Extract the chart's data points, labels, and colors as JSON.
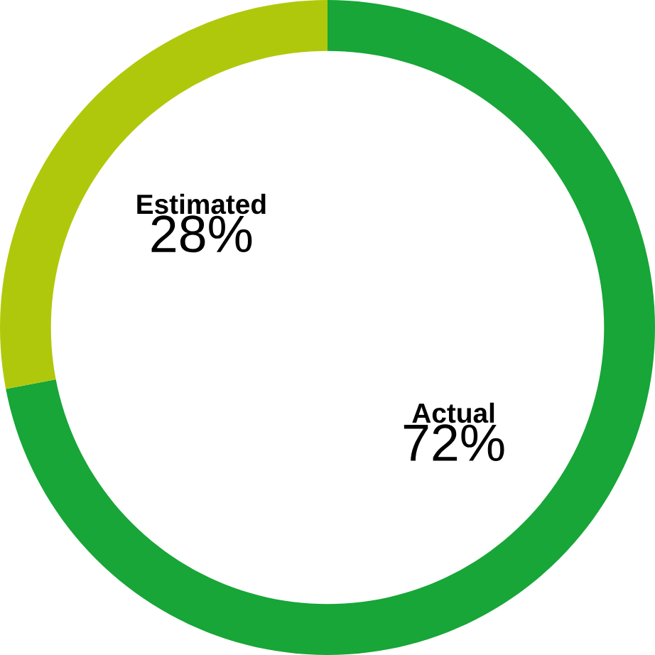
{
  "chart_data": {
    "type": "donut",
    "categories": [
      "Actual",
      "Estimated"
    ],
    "values": [
      72,
      28
    ],
    "colors": [
      "#17a637",
      "#b0c80c"
    ],
    "value_labels": [
      "72%",
      "28%"
    ]
  }
}
